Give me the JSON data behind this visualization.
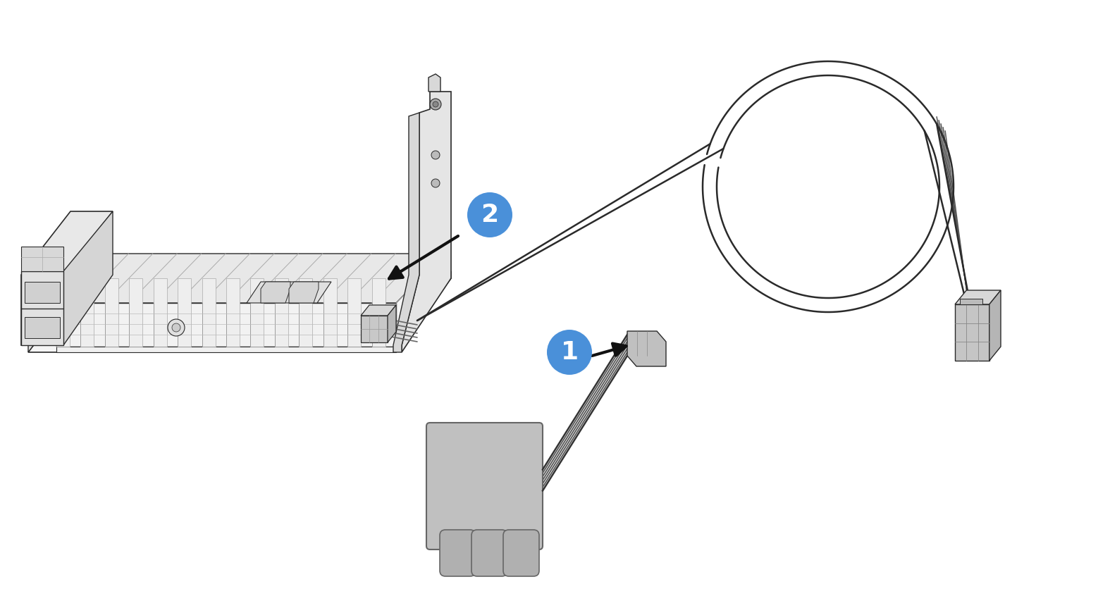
{
  "bg_color": "#ffffff",
  "line_color": "#2a2a2a",
  "badge_color": "#4a90d9",
  "badge_text_color": "#ffffff",
  "arrow_color": "#111111",
  "figsize": [
    15.75,
    8.46
  ],
  "dpi": 100
}
